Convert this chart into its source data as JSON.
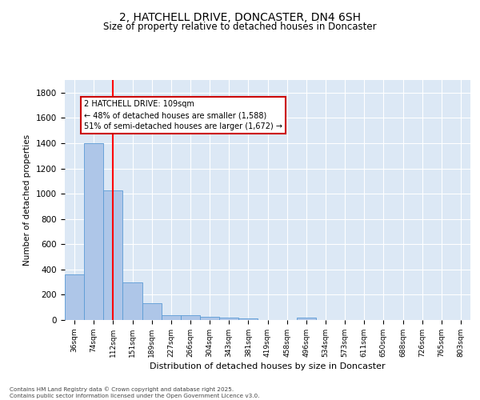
{
  "title1": "2, HATCHELL DRIVE, DONCASTER, DN4 6SH",
  "title2": "Size of property relative to detached houses in Doncaster",
  "xlabel": "Distribution of detached houses by size in Doncaster",
  "ylabel": "Number of detached properties",
  "categories": [
    "36sqm",
    "74sqm",
    "112sqm",
    "151sqm",
    "189sqm",
    "227sqm",
    "266sqm",
    "304sqm",
    "343sqm",
    "381sqm",
    "419sqm",
    "458sqm",
    "496sqm",
    "534sqm",
    "573sqm",
    "611sqm",
    "650sqm",
    "688sqm",
    "726sqm",
    "765sqm",
    "803sqm"
  ],
  "values": [
    360,
    1400,
    1025,
    295,
    130,
    38,
    38,
    25,
    20,
    15,
    0,
    0,
    18,
    0,
    0,
    0,
    0,
    0,
    0,
    0,
    0
  ],
  "bar_color": "#aec6e8",
  "bar_edge_color": "#5b9bd5",
  "red_line_x": 2.0,
  "ylim": [
    0,
    1900
  ],
  "yticks": [
    0,
    200,
    400,
    600,
    800,
    1000,
    1200,
    1400,
    1600,
    1800
  ],
  "annotation_line1": "2 HATCHELL DRIVE: 109sqm",
  "annotation_line2": "← 48% of detached houses are smaller (1,588)",
  "annotation_line3": "51% of semi-detached houses are larger (1,672) →",
  "annotation_box_color": "#ffffff",
  "annotation_box_edge": "#cc0000",
  "background_color": "#dce8f5",
  "footer1": "Contains HM Land Registry data © Crown copyright and database right 2025.",
  "footer2": "Contains public sector information licensed under the Open Government Licence v3.0.",
  "bar_width": 1.0
}
